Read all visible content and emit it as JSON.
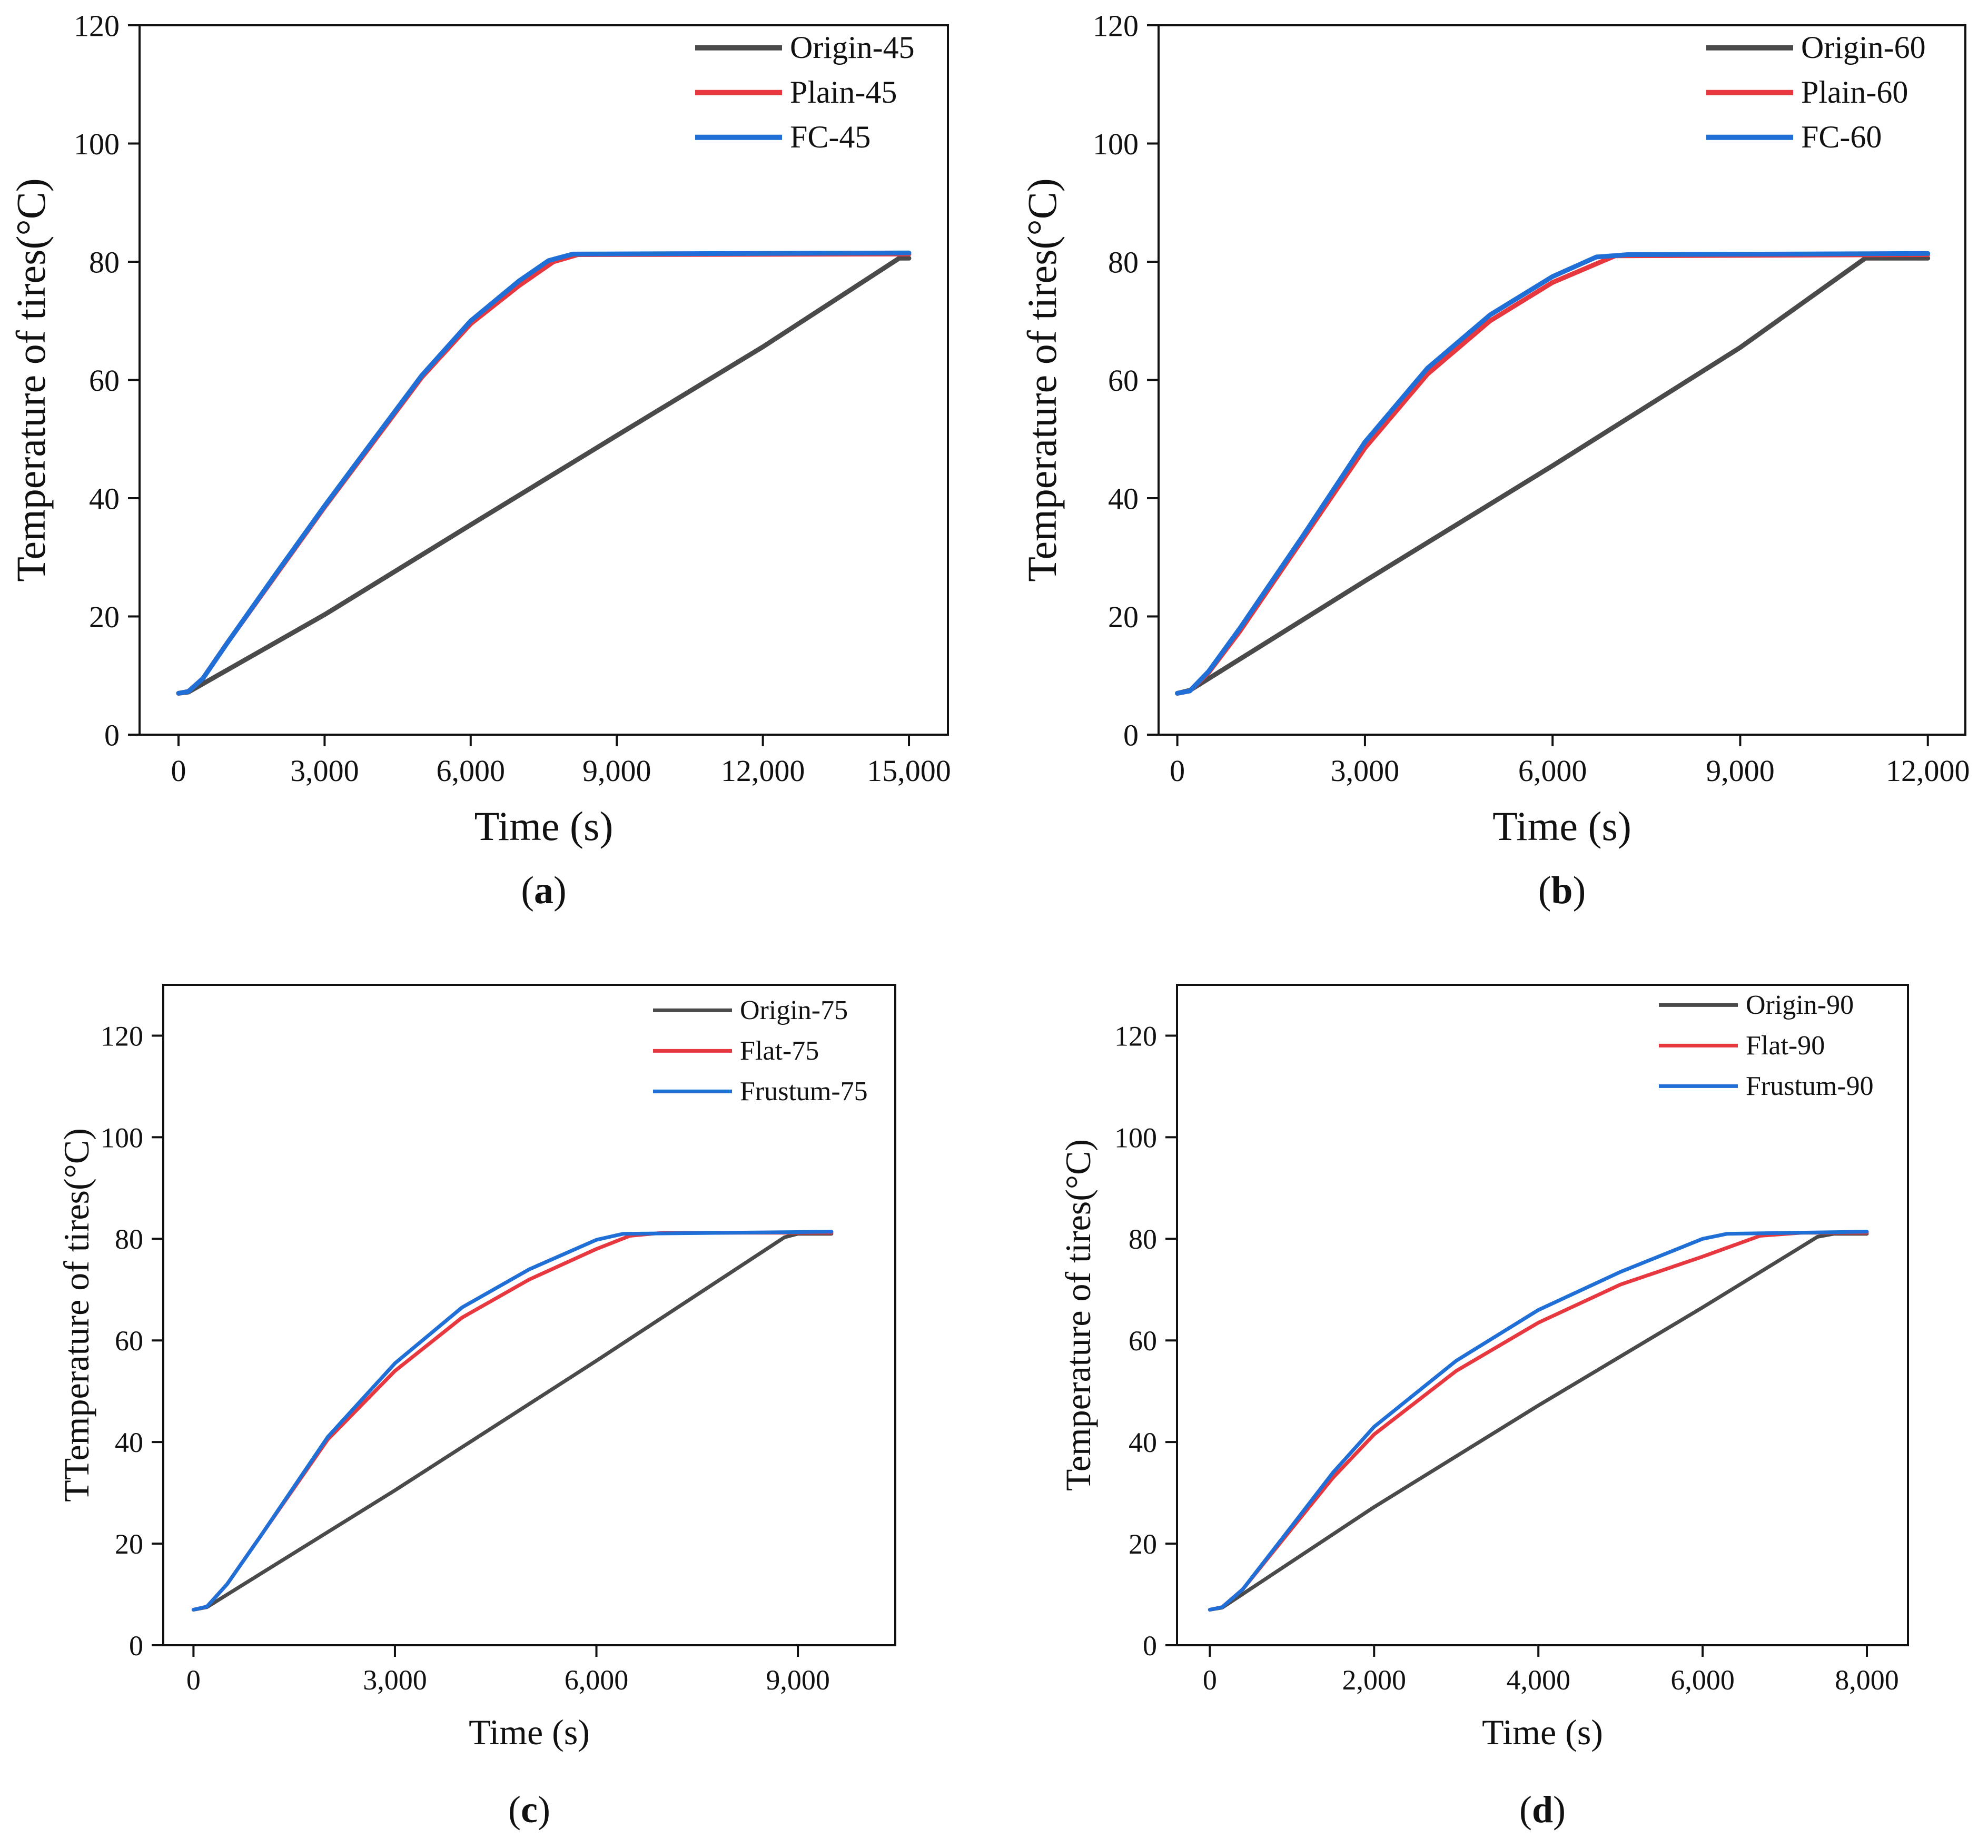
{
  "colors": {
    "origin": "#4a4a4a",
    "plain": "#e8383f",
    "fc": "#1f6fd6",
    "axis": "#111111"
  },
  "chart_data": [
    {
      "id": "a",
      "type": "line",
      "caption": "a",
      "xlabel": "Time (s)",
      "ylabel": "Temperature of tires(°C)",
      "xlim": [
        -800,
        15800
      ],
      "ylim": [
        0,
        120
      ],
      "xticks": [
        0,
        3000,
        6000,
        9000,
        12000,
        15000
      ],
      "xtick_labels": [
        "0",
        "3,000",
        "6,000",
        "9,000",
        "12,000",
        "15,000"
      ],
      "yticks": [
        0,
        20,
        40,
        60,
        80,
        100,
        120
      ],
      "ytick_labels": [
        "0",
        "20",
        "40",
        "60",
        "80",
        "100",
        "120"
      ],
      "series": [
        {
          "name": "Origin-45",
          "color": "#4a4a4a",
          "points": [
            [
              0,
              7
            ],
            [
              200,
              7.2
            ],
            [
              3000,
              20.3
            ],
            [
              6000,
              35.5
            ],
            [
              9000,
              50.6
            ],
            [
              12000,
              65.6
            ],
            [
              14800,
              80.6
            ],
            [
              15000,
              80.6
            ]
          ]
        },
        {
          "name": "Plain-45",
          "color": "#e8383f",
          "points": [
            [
              0,
              7
            ],
            [
              200,
              7.3
            ],
            [
              500,
              9.5
            ],
            [
              1000,
              15.5
            ],
            [
              2000,
              27
            ],
            [
              3000,
              38.5
            ],
            [
              4000,
              49.5
            ],
            [
              5000,
              60.5
            ],
            [
              6000,
              69.5
            ],
            [
              7000,
              76
            ],
            [
              7700,
              80
            ],
            [
              8200,
              81.2
            ],
            [
              15000,
              81.3
            ]
          ]
        },
        {
          "name": "FC-45",
          "color": "#1f6fd6",
          "points": [
            [
              0,
              7
            ],
            [
              200,
              7.3
            ],
            [
              500,
              9.5
            ],
            [
              1000,
              15.5
            ],
            [
              2000,
              27.2
            ],
            [
              3000,
              38.7
            ],
            [
              4000,
              49.8
            ],
            [
              5000,
              60.8
            ],
            [
              6000,
              70
            ],
            [
              7000,
              76.8
            ],
            [
              7600,
              80.2
            ],
            [
              8100,
              81.3
            ],
            [
              15000,
              81.5
            ]
          ]
        }
      ]
    },
    {
      "id": "b",
      "type": "line",
      "caption": "b",
      "xlabel": "Time (s)",
      "ylabel": "Temperature of tires(°C)",
      "xlim": [
        -300,
        12600
      ],
      "ylim": [
        0,
        120
      ],
      "xticks": [
        0,
        3000,
        6000,
        9000,
        12000
      ],
      "xtick_labels": [
        "0",
        "3,000",
        "6,000",
        "9,000",
        "12,000"
      ],
      "yticks": [
        0,
        20,
        40,
        60,
        80,
        100,
        120
      ],
      "ytick_labels": [
        "0",
        "20",
        "40",
        "60",
        "80",
        "100",
        "120"
      ],
      "series": [
        {
          "name": "Origin-60",
          "color": "#4a4a4a",
          "points": [
            [
              0,
              7
            ],
            [
              200,
              7.5
            ],
            [
              3000,
              26
            ],
            [
              6000,
              45.5
            ],
            [
              9000,
              65.5
            ],
            [
              11000,
              80.6
            ],
            [
              12000,
              80.6
            ]
          ]
        },
        {
          "name": "Plain-60",
          "color": "#e8383f",
          "points": [
            [
              0,
              7
            ],
            [
              200,
              7.4
            ],
            [
              500,
              10.5
            ],
            [
              1000,
              17.5
            ],
            [
              2000,
              33
            ],
            [
              3000,
              48.5
            ],
            [
              4000,
              61
            ],
            [
              5000,
              70
            ],
            [
              6000,
              76.5
            ],
            [
              7000,
              81
            ],
            [
              12000,
              81.2
            ]
          ]
        },
        {
          "name": "FC-60",
          "color": "#1f6fd6",
          "points": [
            [
              0,
              7
            ],
            [
              200,
              7.4
            ],
            [
              500,
              10.7
            ],
            [
              1000,
              18
            ],
            [
              2000,
              33.5
            ],
            [
              3000,
              49.5
            ],
            [
              4000,
              62
            ],
            [
              5000,
              71
            ],
            [
              6000,
              77.5
            ],
            [
              6700,
              80.8
            ],
            [
              7200,
              81.2
            ],
            [
              12000,
              81.4
            ]
          ]
        }
      ]
    },
    {
      "id": "c",
      "type": "line",
      "caption": "c",
      "xlabel": "Time (s)",
      "ylabel": "TTemperature of tires(°C)",
      "xlim": [
        -450,
        10450
      ],
      "ylim": [
        0,
        130
      ],
      "xticks": [
        0,
        3000,
        6000,
        9000
      ],
      "xtick_labels": [
        "0",
        "3,000",
        "6,000",
        "9,000"
      ],
      "yticks": [
        0,
        20,
        40,
        60,
        80,
        100,
        120
      ],
      "ytick_labels": [
        "0",
        "20",
        "40",
        "60",
        "80",
        "100",
        "120"
      ],
      "series": [
        {
          "name": "Origin-75",
          "color": "#4a4a4a",
          "points": [
            [
              0,
              7
            ],
            [
              200,
              7.5
            ],
            [
              3000,
              30.5
            ],
            [
              6000,
              56
            ],
            [
              8800,
              80.3
            ],
            [
              9000,
              81
            ],
            [
              9500,
              81
            ]
          ]
        },
        {
          "name": "Flat-75",
          "color": "#e8383f",
          "points": [
            [
              0,
              7
            ],
            [
              200,
              7.6
            ],
            [
              500,
              12
            ],
            [
              1000,
              21.5
            ],
            [
              2000,
              40.5
            ],
            [
              3000,
              54
            ],
            [
              4000,
              64.5
            ],
            [
              5000,
              72
            ],
            [
              6000,
              78
            ],
            [
              6500,
              80.6
            ],
            [
              7000,
              81.2
            ],
            [
              9500,
              81.2
            ]
          ]
        },
        {
          "name": "Frustum-75",
          "color": "#1f6fd6",
          "points": [
            [
              0,
              7
            ],
            [
              200,
              7.6
            ],
            [
              500,
              12
            ],
            [
              1000,
              21.5
            ],
            [
              2000,
              41
            ],
            [
              3000,
              55.5
            ],
            [
              4000,
              66.5
            ],
            [
              5000,
              74
            ],
            [
              6000,
              79.8
            ],
            [
              6400,
              81
            ],
            [
              9500,
              81.4
            ]
          ]
        }
      ]
    },
    {
      "id": "d",
      "type": "line",
      "caption": "d",
      "xlabel": "Time (s)",
      "ylabel": "Temperature of tires(°C)",
      "xlim": [
        -400,
        8500
      ],
      "ylim": [
        0,
        130
      ],
      "xticks": [
        0,
        2000,
        4000,
        6000,
        8000
      ],
      "xtick_labels": [
        "0",
        "2,000",
        "4,000",
        "6,000",
        "8,000"
      ],
      "yticks": [
        0,
        20,
        40,
        60,
        80,
        100,
        120
      ],
      "ytick_labels": [
        "0",
        "20",
        "40",
        "60",
        "80",
        "100",
        "120"
      ],
      "series": [
        {
          "name": "Origin-90",
          "color": "#4a4a4a",
          "points": [
            [
              0,
              7
            ],
            [
              150,
              7.4
            ],
            [
              2000,
              27.2
            ],
            [
              4000,
              47.2
            ],
            [
              6000,
              66.5
            ],
            [
              7400,
              80.4
            ],
            [
              7600,
              81
            ],
            [
              8000,
              81
            ]
          ]
        },
        {
          "name": "Flat-90",
          "color": "#e8383f",
          "points": [
            [
              0,
              7
            ],
            [
              150,
              7.5
            ],
            [
              400,
              11
            ],
            [
              1000,
              23
            ],
            [
              1500,
              33
            ],
            [
              2000,
              41.5
            ],
            [
              3000,
              54
            ],
            [
              4000,
              63.5
            ],
            [
              5000,
              71
            ],
            [
              6000,
              76.5
            ],
            [
              6700,
              80.6
            ],
            [
              7200,
              81.2
            ],
            [
              8000,
              81.2
            ]
          ]
        },
        {
          "name": "Frustum-90",
          "color": "#1f6fd6",
          "points": [
            [
              0,
              7
            ],
            [
              150,
              7.5
            ],
            [
              400,
              11
            ],
            [
              1000,
              23.5
            ],
            [
              1500,
              34
            ],
            [
              2000,
              43
            ],
            [
              3000,
              56
            ],
            [
              4000,
              66
            ],
            [
              5000,
              73.5
            ],
            [
              6000,
              80
            ],
            [
              6300,
              81
            ],
            [
              8000,
              81.4
            ]
          ]
        }
      ]
    }
  ]
}
